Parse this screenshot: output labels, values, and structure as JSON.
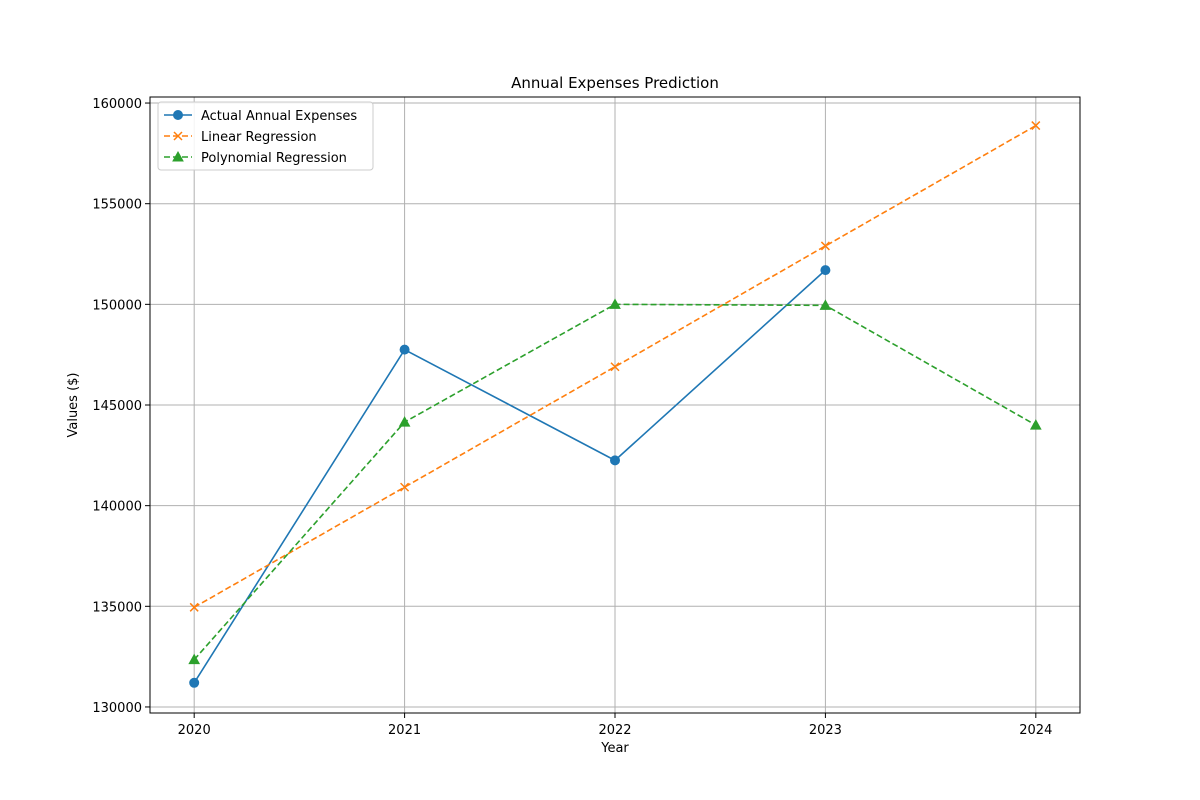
{
  "chart_data": {
    "type": "line",
    "title": "Annual Expenses Prediction",
    "xlabel": "Year",
    "ylabel": "Values ($)",
    "x": [
      2020,
      2021,
      2022,
      2023,
      2024
    ],
    "x_tick_labels": [
      "2020",
      "2021",
      "2022",
      "2023",
      "2024"
    ],
    "xlim": [
      2019.79,
      2024.21
    ],
    "ylim": [
      129700,
      160300
    ],
    "y_ticks": [
      130000,
      135000,
      140000,
      145000,
      150000,
      155000,
      160000
    ],
    "y_tick_labels": [
      "130000",
      "135000",
      "140000",
      "145000",
      "150000",
      "155000",
      "160000"
    ],
    "grid": true,
    "legend_position": "upper-left",
    "series": [
      {
        "name": "Actual Annual Expenses",
        "x": [
          2020,
          2021,
          2022,
          2023
        ],
        "values": [
          131200,
          147750,
          142250,
          151700
        ],
        "color": "#1f77b4",
        "linestyle": "solid",
        "marker": "circle"
      },
      {
        "name": "Linear Regression",
        "x": [
          2020,
          2021,
          2022,
          2023,
          2024
        ],
        "values": [
          134950,
          140920,
          146900,
          152900,
          158880
        ],
        "color": "#ff7f0e",
        "linestyle": "dashed",
        "marker": "x"
      },
      {
        "name": "Polynomial Regression",
        "x": [
          2020,
          2021,
          2022,
          2023,
          2024
        ],
        "values": [
          132350,
          144150,
          150000,
          149950,
          144000
        ],
        "color": "#2ca02c",
        "linestyle": "dashed",
        "marker": "triangle"
      }
    ]
  }
}
